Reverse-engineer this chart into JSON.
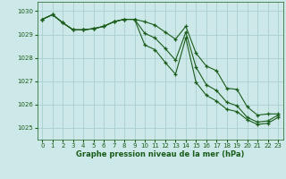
{
  "title": "Graphe pression niveau de la mer (hPa)",
  "background_color": "#cce8e8",
  "grid_color": "#aacece",
  "line_color": "#1a5c1a",
  "xlim": [
    -0.5,
    23.5
  ],
  "ylim": [
    1024.5,
    1030.4
  ],
  "yticks": [
    1025,
    1026,
    1027,
    1028,
    1029,
    1030
  ],
  "xticks": [
    0,
    1,
    2,
    3,
    4,
    5,
    6,
    7,
    8,
    9,
    10,
    11,
    12,
    13,
    14,
    15,
    16,
    17,
    18,
    19,
    20,
    21,
    22,
    23
  ],
  "series": [
    [
      1029.65,
      1029.85,
      1029.5,
      1029.2,
      1029.2,
      1029.25,
      1029.35,
      1029.55,
      1029.65,
      1029.65,
      1029.55,
      1029.4,
      1029.1,
      1028.8,
      1029.35,
      1028.2,
      1027.65,
      1027.45,
      1026.7,
      1026.65,
      1025.9,
      1025.55,
      1025.6,
      1025.6
    ],
    [
      1029.65,
      1029.85,
      1029.5,
      1029.2,
      1029.2,
      1029.25,
      1029.35,
      1029.55,
      1029.65,
      1029.65,
      1029.05,
      1028.85,
      1028.4,
      1027.9,
      1029.1,
      1027.6,
      1026.85,
      1026.6,
      1026.1,
      1025.95,
      1025.45,
      1025.25,
      1025.3,
      1025.55
    ],
    [
      1029.65,
      1029.85,
      1029.5,
      1029.2,
      1029.2,
      1029.25,
      1029.35,
      1029.55,
      1029.65,
      1029.65,
      1028.55,
      1028.35,
      1027.8,
      1027.3,
      1028.85,
      1026.95,
      1026.4,
      1026.15,
      1025.8,
      1025.7,
      1025.35,
      1025.15,
      1025.2,
      1025.45
    ]
  ],
  "title_fontsize": 6,
  "tick_fontsize": 5
}
